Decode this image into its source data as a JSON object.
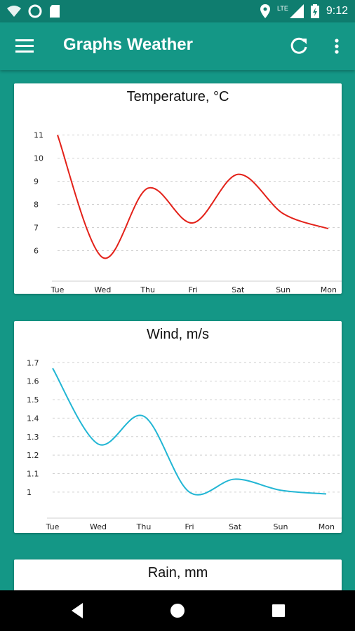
{
  "status": {
    "time": "9:12",
    "network": "LTE"
  },
  "appbar": {
    "title": "Graphs Weather"
  },
  "charts": [
    {
      "title": "Temperature, °C",
      "color": "#e32119",
      "categories": [
        "Tue",
        "Wed",
        "Thu",
        "Fri",
        "Sat",
        "Sun",
        "Mon"
      ],
      "yticks": [
        "11",
        "10",
        "9",
        "8",
        "7",
        "6"
      ]
    },
    {
      "title": "Wind, m/s",
      "color": "#22b6d4",
      "categories": [
        "Tue",
        "Wed",
        "Thu",
        "Fri",
        "Sat",
        "Sun",
        "Mon"
      ],
      "yticks": [
        "1.7",
        "1.6",
        "1.5",
        "1.4",
        "1.3",
        "1.2",
        "1.1",
        "1"
      ]
    },
    {
      "title": "Rain, mm"
    }
  ],
  "chart_data": [
    {
      "type": "line",
      "title": "Temperature, °C",
      "categories": [
        "Tue",
        "Wed",
        "Thu",
        "Fri",
        "Sat",
        "Sun",
        "Mon"
      ],
      "values": [
        11,
        5.7,
        8.7,
        7.2,
        9.3,
        7.6,
        6.95
      ],
      "ylim": [
        5.5,
        11.2
      ],
      "grid": true,
      "color": "#e32119"
    },
    {
      "type": "line",
      "title": "Wind, m/s",
      "categories": [
        "Tue",
        "Wed",
        "Thu",
        "Fri",
        "Sat",
        "Sun",
        "Mon"
      ],
      "values": [
        1.67,
        1.26,
        1.41,
        1.0,
        1.07,
        1.01,
        0.99
      ],
      "ylim": [
        0.92,
        1.72
      ],
      "grid": true,
      "color": "#22b6d4"
    },
    {
      "type": "line",
      "title": "Rain, mm"
    }
  ]
}
